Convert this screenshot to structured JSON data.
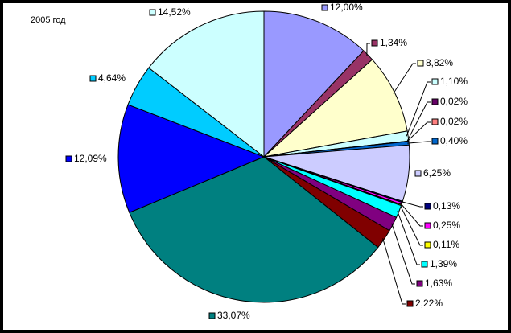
{
  "chart_data": {
    "type": "pie",
    "title": "2005 год",
    "categories": [
      null,
      null,
      null,
      null,
      null,
      null,
      null,
      null,
      null,
      null,
      null,
      null,
      null,
      null,
      null,
      null,
      null,
      null
    ],
    "values": [
      12.0,
      1.34,
      8.82,
      1.1,
      0.02,
      0.02,
      0.4,
      6.25,
      0.13,
      0.25,
      0.11,
      1.39,
      1.63,
      2.22,
      33.07,
      12.09,
      4.64,
      14.52
    ],
    "value_labels": [
      "12,00%",
      "1,34%",
      "8,82%",
      "1,10%",
      "0,02%",
      "0,02%",
      "0,40%",
      "6,25%",
      "0,13%",
      "0,25%",
      "0,11%",
      "1,39%",
      "1,63%",
      "2,22%",
      "33,07%",
      "12,09%",
      "4,64%",
      "14,52%"
    ],
    "colors": [
      "#9999FF",
      "#993366",
      "#FFFFCC",
      "#CCFFFF",
      "#660066",
      "#FF8080",
      "#0066CC",
      "#CCCCFF",
      "#000080",
      "#FF00FF",
      "#FFFF00",
      "#00FFFF",
      "#800080",
      "#800000",
      "#008080",
      "#0000FF",
      "#00CCFF",
      "#CCFFFF"
    ]
  }
}
